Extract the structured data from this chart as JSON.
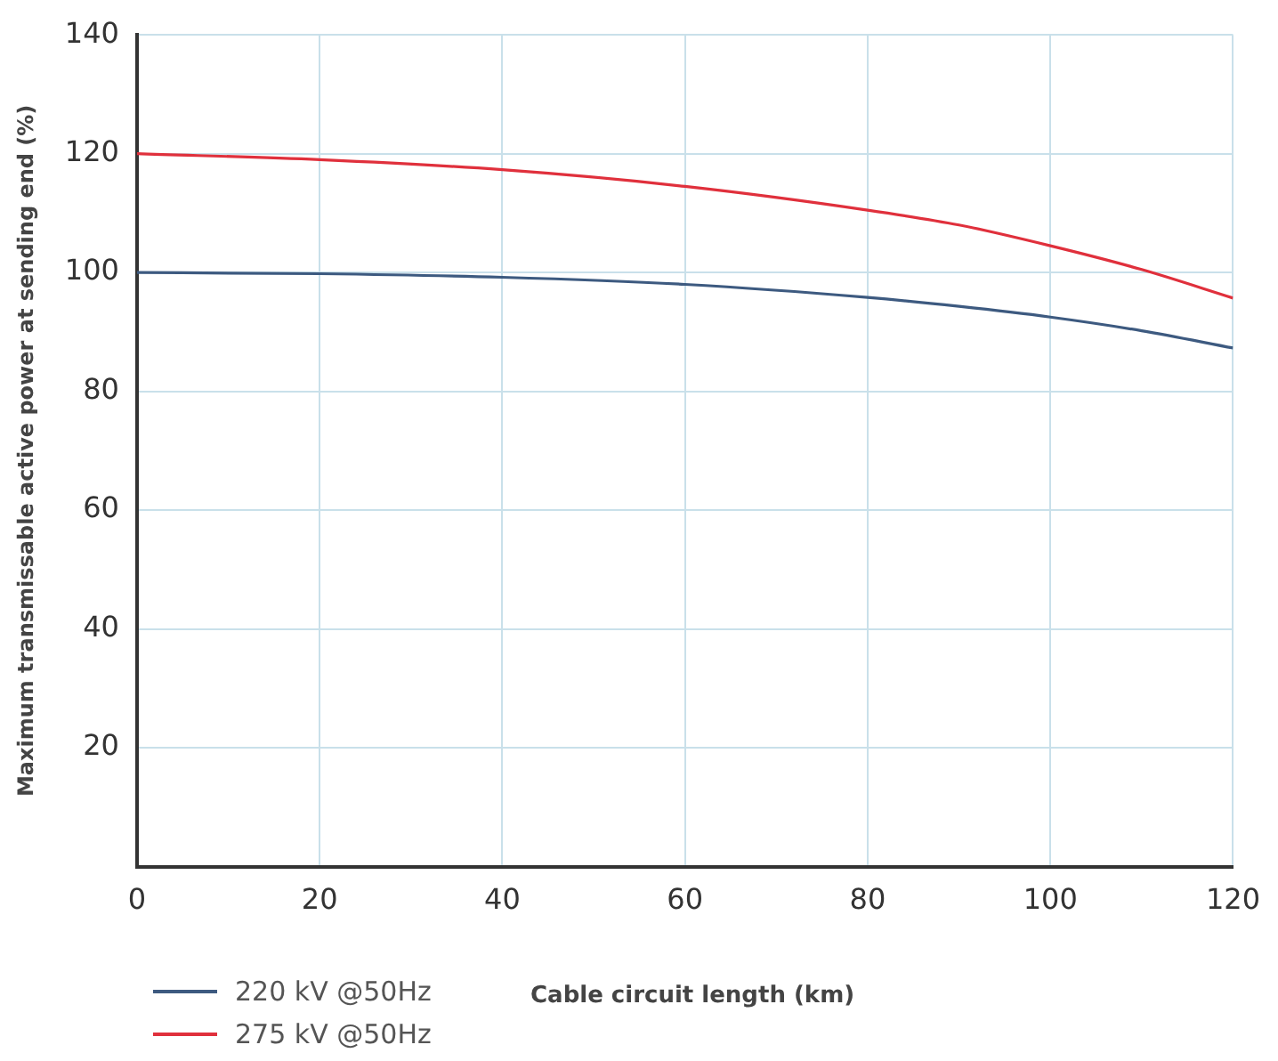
{
  "chart_data": {
    "type": "line",
    "xlabel": "Cable circuit length (km)",
    "ylabel": "Maximum transmissable active power at sending end (%)",
    "x": [
      0,
      20,
      40,
      60,
      80,
      90,
      100,
      110,
      120
    ],
    "series": [
      {
        "name": "220 kV @50Hz",
        "color": "#3d5a80",
        "values": [
          100,
          99.8,
          99.2,
          98,
          95.8,
          94.3,
          92.5,
          90.2,
          87.3
        ]
      },
      {
        "name": "275 kV @50Hz",
        "color": "#e0303c",
        "values": [
          120,
          119,
          117.3,
          114.5,
          110.5,
          108,
          104.5,
          100.5,
          95.7
        ]
      }
    ],
    "xlim": [
      0,
      120
    ],
    "xticks": [
      0,
      20,
      40,
      60,
      80,
      100,
      120
    ],
    "ylim": [
      0,
      140
    ],
    "yticks": [
      {
        "value": 0,
        "label": null
      },
      20,
      40,
      60,
      80,
      100,
      120,
      140
    ],
    "grid": true,
    "legend": "bottom left",
    "marker": "none",
    "line_style": "solid"
  }
}
